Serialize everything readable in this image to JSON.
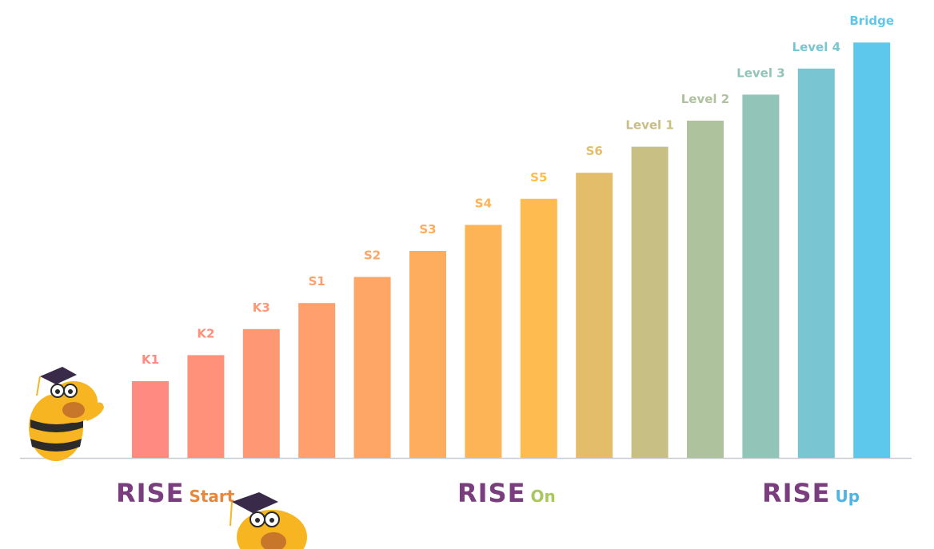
{
  "levels": [
    "K1",
    "K2",
    "K3",
    "S1",
    "S2",
    "S3",
    "S4",
    "S5",
    "S6",
    "Level 1",
    "Level 2",
    "Level 3",
    "Level 4",
    "Bridge"
  ],
  "programs": [
    {
      "brand": "RISE",
      "suffix": "Start"
    },
    {
      "brand": "RISE",
      "suffix": "On"
    },
    {
      "brand": "RISE",
      "suffix": "Up"
    }
  ]
}
